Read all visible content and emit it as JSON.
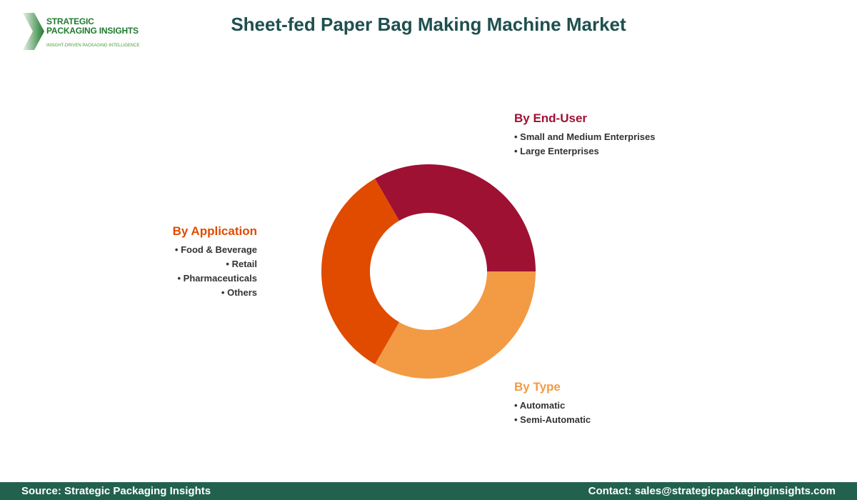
{
  "logo": {
    "line1": "STRATEGIC",
    "line2": "PACKAGING INSIGHTS",
    "tagline": "INSIGHT-DRIVEN PACKAGING INTELLIGENCE"
  },
  "title": "Sheet-fed Paper Bag Making Machine Market",
  "chart_data": {
    "type": "pie",
    "donut": true,
    "title": "Sheet-fed Paper Bag Making Machine Market",
    "segments": [
      {
        "name": "By End-User",
        "value": 33.3,
        "color": "#9e1133",
        "items": [
          "Small and Medium Enterprises",
          "Large Enterprises"
        ]
      },
      {
        "name": "By Type",
        "value": 33.3,
        "color": "#f39a45",
        "items": [
          "Automatic",
          "Semi-Automatic"
        ]
      },
      {
        "name": "By Application",
        "value": 33.3,
        "color": "#e04b00",
        "items": [
          "Food & Beverage",
          "Retail",
          "Pharmaceuticals",
          "Others"
        ]
      }
    ]
  },
  "footer": {
    "source": "Source: Strategic Packaging Insights",
    "contact": "Contact: sales@strategicpackaginginsights.com"
  }
}
